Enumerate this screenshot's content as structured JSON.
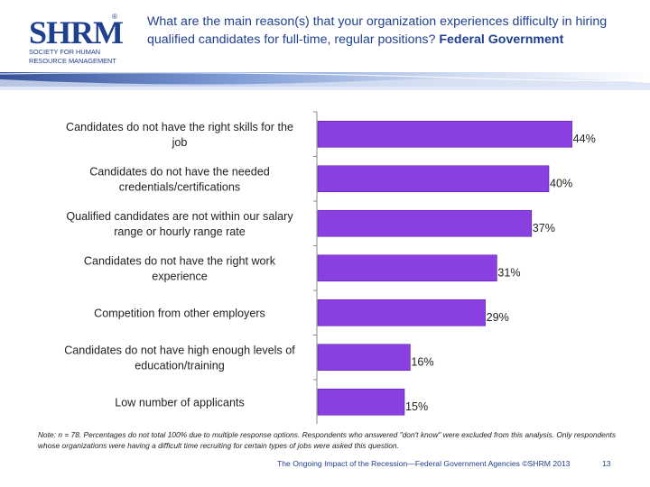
{
  "logo": {
    "mark": "SHRM",
    "registered": "®",
    "line1": "SOCIETY FOR HUMAN",
    "line2": "RESOURCE MANAGEMENT"
  },
  "header": {
    "question": "What are the main reason(s) that your organization experiences difficulty in hiring qualified candidates for full-time, regular positions?",
    "segment": "Federal Government"
  },
  "colors": {
    "bar": "#8a3fe0",
    "bar_edge": "#5a1fa8",
    "title": "#1f3f8f",
    "axis": "#888888"
  },
  "chart_data": {
    "type": "bar",
    "orientation": "horizontal",
    "categories": [
      "Candidates do not have the right skills for the job",
      "Candidates do not have the needed credentials/certifications",
      "Qualified candidates are not within our salary range or hourly range rate",
      "Candidates do not have the right work experience",
      "Competition from other employers",
      "Candidates do not have high enough levels of education/training",
      "Low number of applicants"
    ],
    "values": [
      44,
      40,
      37,
      31,
      29,
      16,
      15
    ],
    "value_labels": [
      "44%",
      "40%",
      "37%",
      "31%",
      "29%",
      "16%",
      "15%"
    ],
    "xlim": [
      0,
      50
    ]
  },
  "note": "Note: n = 78. Percentages do not total 100% due to multiple response options. Respondents who answered \"don't know\" were excluded from this analysis. Only respondents whose organizations were having a difficult time recruiting for certain types of jobs were asked this question.",
  "footer": {
    "source": "The Ongoing Impact of the Recession—Federal Government Agencies ©SHRM 2013",
    "page": "13"
  }
}
